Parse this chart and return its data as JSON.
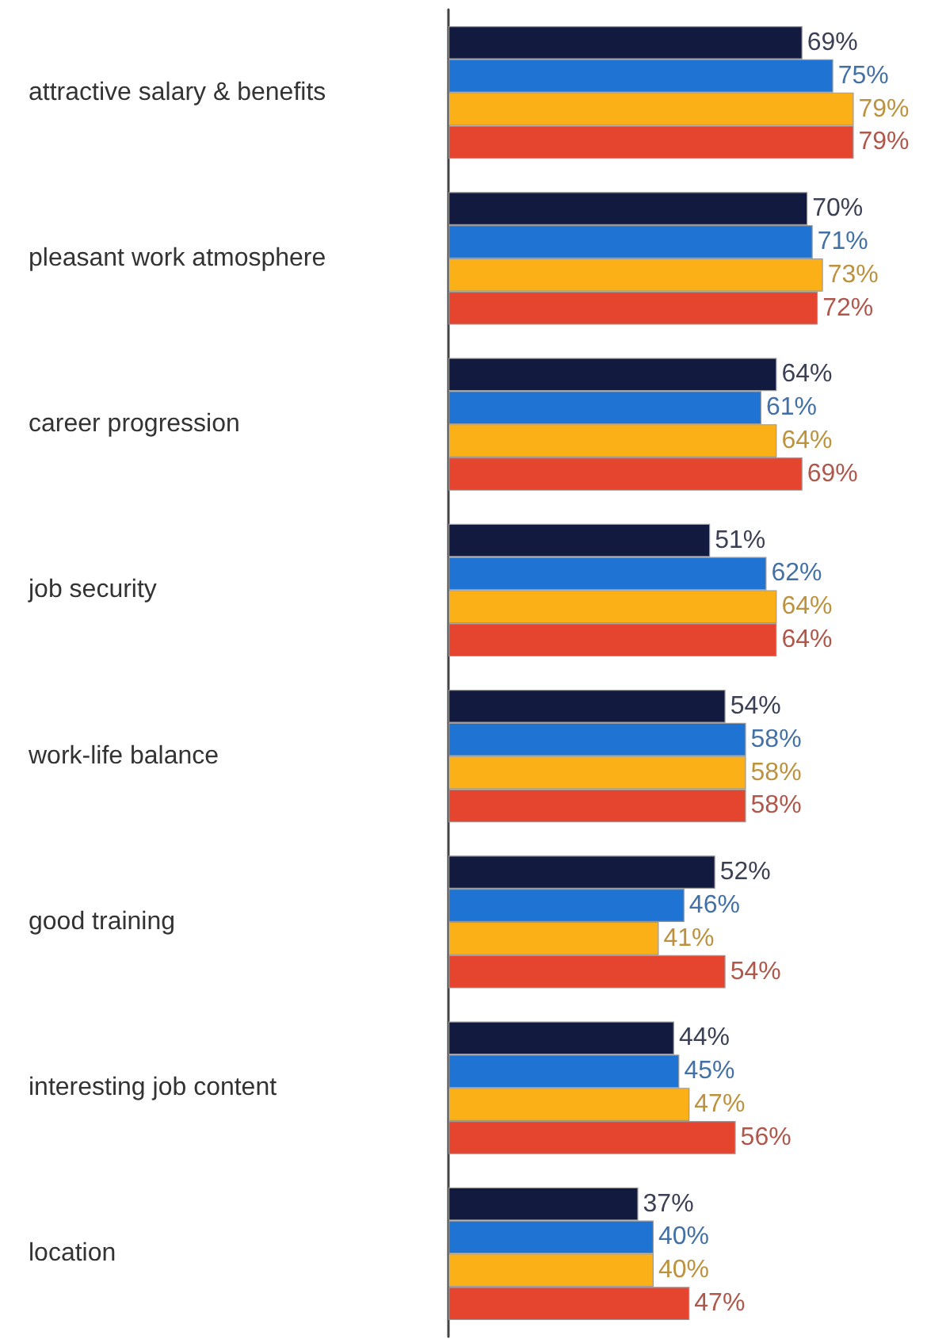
{
  "chart_data": {
    "type": "bar",
    "orientation": "horizontal",
    "categories": [
      "attractive salary & benefits",
      "pleasant work atmosphere",
      "career progression",
      "job security",
      "work-life balance",
      "good training",
      "interesting job content",
      "location"
    ],
    "series": [
      {
        "color": "#131a3f",
        "values": [
          69,
          70,
          64,
          51,
          54,
          52,
          44,
          37
        ],
        "value_labels": [
          "69%",
          "70%",
          "64%",
          "51%",
          "54%",
          "52%",
          "44%",
          "37%"
        ]
      },
      {
        "color": "#1f74d3",
        "values": [
          75,
          71,
          61,
          62,
          58,
          46,
          45,
          40
        ],
        "value_labels": [
          "75%",
          "71%",
          "61%",
          "62%",
          "58%",
          "46%",
          "45%",
          "40%"
        ]
      },
      {
        "color": "#fbb017",
        "values": [
          79,
          73,
          64,
          64,
          58,
          41,
          47,
          40
        ],
        "value_labels": [
          "79%",
          "73%",
          "64%",
          "64%",
          "58%",
          "41%",
          "47%",
          "40%"
        ]
      },
      {
        "color": "#e5452f",
        "values": [
          79,
          72,
          69,
          64,
          58,
          54,
          56,
          47
        ],
        "value_labels": [
          "79%",
          "72%",
          "69%",
          "64%",
          "58%",
          "54%",
          "56%",
          "47%"
        ]
      }
    ],
    "grid": false
  }
}
